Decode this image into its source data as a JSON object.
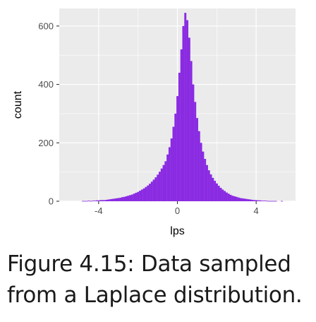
{
  "colors": {
    "panel_background": "#ebebeb",
    "grid": "#ffffff",
    "bar_fill": "#8a2be2",
    "text": "#4d4d4d"
  },
  "chart_data": {
    "type": "histogram",
    "title": "",
    "xlabel": "lps",
    "ylabel": "count",
    "xlim": [
      -6,
      6
    ],
    "ylim": [
      0,
      660
    ],
    "x_ticks": [
      -4,
      0,
      4
    ],
    "y_ticks": [
      0,
      200,
      400,
      600
    ],
    "x_tick_labels": [
      "-4",
      "0",
      "4"
    ],
    "y_tick_labels": [
      "0",
      "200",
      "400",
      "600"
    ],
    "grid": true,
    "bin_width": 0.1,
    "bins": [
      {
        "x": -4.8,
        "count": 1
      },
      {
        "x": -4.7,
        "count": 1
      },
      {
        "x": -4.6,
        "count": 1
      },
      {
        "x": -4.5,
        "count": 2
      },
      {
        "x": -4.4,
        "count": 1
      },
      {
        "x": -4.3,
        "count": 2
      },
      {
        "x": -4.2,
        "count": 2
      },
      {
        "x": -4.1,
        "count": 3
      },
      {
        "x": -4.0,
        "count": 3
      },
      {
        "x": -3.9,
        "count": 4
      },
      {
        "x": -3.8,
        "count": 4
      },
      {
        "x": -3.7,
        "count": 4
      },
      {
        "x": -3.6,
        "count": 5
      },
      {
        "x": -3.5,
        "count": 6
      },
      {
        "x": -3.4,
        "count": 7
      },
      {
        "x": -3.3,
        "count": 8
      },
      {
        "x": -3.2,
        "count": 9
      },
      {
        "x": -3.1,
        "count": 10
      },
      {
        "x": -3.0,
        "count": 11
      },
      {
        "x": -2.9,
        "count": 12
      },
      {
        "x": -2.8,
        "count": 14
      },
      {
        "x": -2.7,
        "count": 15
      },
      {
        "x": -2.6,
        "count": 17
      },
      {
        "x": -2.5,
        "count": 19
      },
      {
        "x": -2.4,
        "count": 21
      },
      {
        "x": -2.3,
        "count": 23
      },
      {
        "x": -2.2,
        "count": 26
      },
      {
        "x": -2.1,
        "count": 29
      },
      {
        "x": -2.0,
        "count": 32
      },
      {
        "x": -1.9,
        "count": 36
      },
      {
        "x": -1.8,
        "count": 40
      },
      {
        "x": -1.7,
        "count": 44
      },
      {
        "x": -1.6,
        "count": 49
      },
      {
        "x": -1.5,
        "count": 54
      },
      {
        "x": -1.4,
        "count": 60
      },
      {
        "x": -1.3,
        "count": 67
      },
      {
        "x": -1.2,
        "count": 74
      },
      {
        "x": -1.1,
        "count": 82
      },
      {
        "x": -1.0,
        "count": 91
      },
      {
        "x": -0.9,
        "count": 101
      },
      {
        "x": -0.8,
        "count": 112
      },
      {
        "x": -0.7,
        "count": 124
      },
      {
        "x": -0.6,
        "count": 137
      },
      {
        "x": -0.5,
        "count": 160
      },
      {
        "x": -0.4,
        "count": 185
      },
      {
        "x": -0.3,
        "count": 215
      },
      {
        "x": -0.2,
        "count": 255
      },
      {
        "x": -0.1,
        "count": 300
      },
      {
        "x": 0.0,
        "count": 360
      },
      {
        "x": 0.1,
        "count": 440
      },
      {
        "x": 0.2,
        "count": 520
      },
      {
        "x": 0.3,
        "count": 600
      },
      {
        "x": 0.4,
        "count": 645
      },
      {
        "x": 0.5,
        "count": 620
      },
      {
        "x": 0.6,
        "count": 560
      },
      {
        "x": 0.7,
        "count": 480
      },
      {
        "x": 0.8,
        "count": 400
      },
      {
        "x": 0.9,
        "count": 340
      },
      {
        "x": 1.0,
        "count": 285
      },
      {
        "x": 1.1,
        "count": 240
      },
      {
        "x": 1.2,
        "count": 200
      },
      {
        "x": 1.3,
        "count": 170
      },
      {
        "x": 1.4,
        "count": 145
      },
      {
        "x": 1.5,
        "count": 124
      },
      {
        "x": 1.6,
        "count": 106
      },
      {
        "x": 1.7,
        "count": 92
      },
      {
        "x": 1.8,
        "count": 80
      },
      {
        "x": 1.9,
        "count": 70
      },
      {
        "x": 2.0,
        "count": 61
      },
      {
        "x": 2.1,
        "count": 53
      },
      {
        "x": 2.2,
        "count": 46
      },
      {
        "x": 2.3,
        "count": 40
      },
      {
        "x": 2.4,
        "count": 35
      },
      {
        "x": 2.5,
        "count": 30
      },
      {
        "x": 2.6,
        "count": 26
      },
      {
        "x": 2.7,
        "count": 22
      },
      {
        "x": 2.8,
        "count": 19
      },
      {
        "x": 2.9,
        "count": 17
      },
      {
        "x": 3.0,
        "count": 15
      },
      {
        "x": 3.1,
        "count": 13
      },
      {
        "x": 3.2,
        "count": 11
      },
      {
        "x": 3.3,
        "count": 10
      },
      {
        "x": 3.4,
        "count": 9
      },
      {
        "x": 3.5,
        "count": 8
      },
      {
        "x": 3.6,
        "count": 7
      },
      {
        "x": 3.7,
        "count": 6
      },
      {
        "x": 3.8,
        "count": 5
      },
      {
        "x": 3.9,
        "count": 4
      },
      {
        "x": 4.0,
        "count": 4
      },
      {
        "x": 4.1,
        "count": 3
      },
      {
        "x": 4.2,
        "count": 3
      },
      {
        "x": 4.3,
        "count": 2
      },
      {
        "x": 4.4,
        "count": 2
      },
      {
        "x": 4.5,
        "count": 2
      },
      {
        "x": 4.6,
        "count": 1
      },
      {
        "x": 4.7,
        "count": 1
      },
      {
        "x": 4.8,
        "count": 1
      },
      {
        "x": 4.9,
        "count": 1
      },
      {
        "x": 5.0,
        "count": 1
      },
      {
        "x": 5.3,
        "count": 1
      }
    ]
  },
  "caption": {
    "line1": "Figure 4.15: Data sampled",
    "line2": "from a Laplace distribution."
  }
}
